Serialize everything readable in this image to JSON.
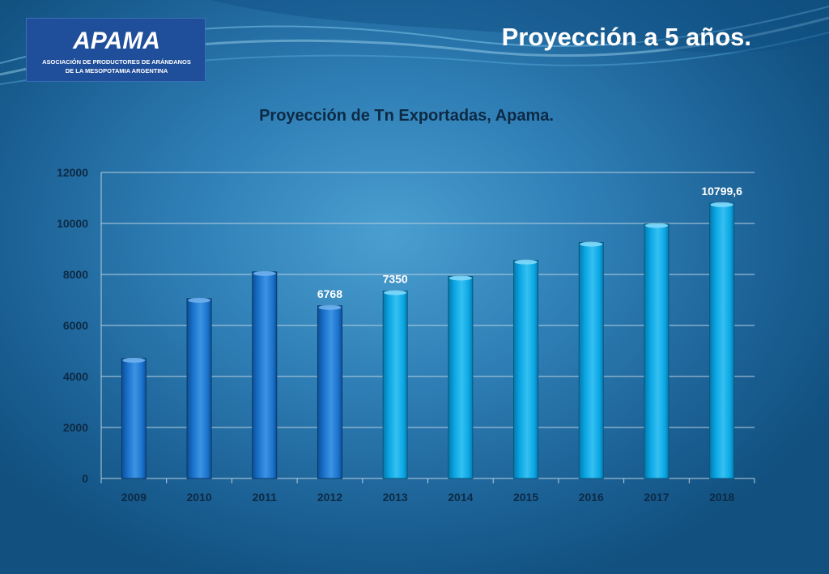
{
  "slide": {
    "title": "Proyección a 5 años."
  },
  "logo": {
    "name": "APAMA",
    "line1": "ASOCIACIÓN DE PRODUCTORES DE ARÁNDANOS",
    "line2": "DE LA MESOPOTAMIA ARGENTINA"
  },
  "colors": {
    "historical_bar": "#1a72cc",
    "projected_bar": "#0aa6e4",
    "gridline": "#b9cfe0",
    "text_dark": "#0d2a45"
  },
  "chart_data": {
    "type": "bar",
    "title": "Proyección de Tn Exportadas, Apama.",
    "xlabel": "",
    "ylabel": "",
    "categories": [
      "2009",
      "2010",
      "2011",
      "2012",
      "2013",
      "2014",
      "2015",
      "2016",
      "2017",
      "2018"
    ],
    "values": [
      4700,
      7050,
      8100,
      6768,
      7350,
      7920,
      8550,
      9250,
      9980,
      10799.6
    ],
    "kind": [
      "historical",
      "historical",
      "historical",
      "historical",
      "projected",
      "projected",
      "projected",
      "projected",
      "projected",
      "projected"
    ],
    "data_labels": [
      null,
      null,
      null,
      "6768",
      "7350",
      null,
      null,
      null,
      null,
      "10799,6"
    ],
    "yticks": [
      "0",
      "2000",
      "4000",
      "6000",
      "8000",
      "10000",
      "12000"
    ],
    "ylim": [
      0,
      12000
    ],
    "grid": true,
    "legend": "none"
  }
}
